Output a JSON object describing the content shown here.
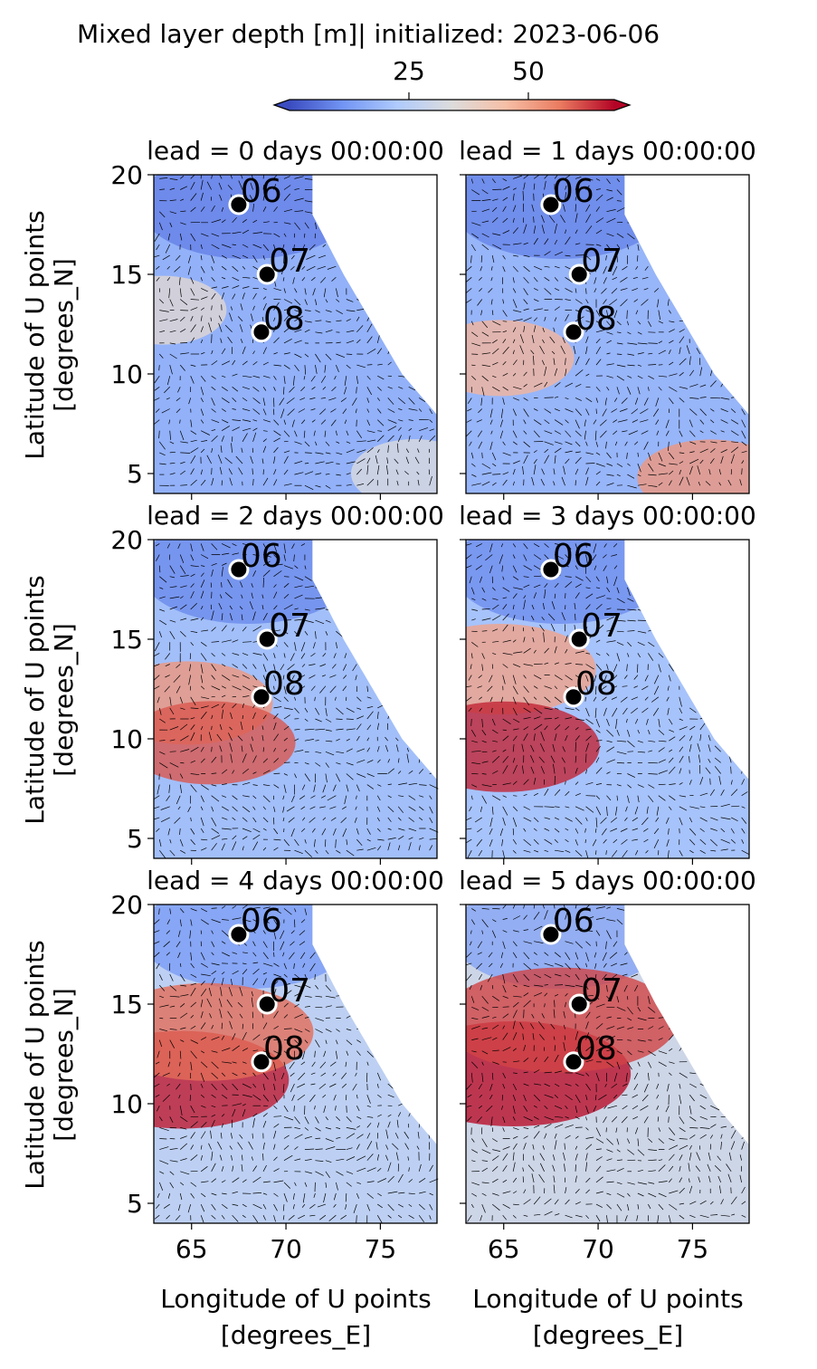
{
  "chart_data": {
    "type": "heatmap",
    "colorbar": {
      "label": "Mixed layer depth [m]| initialized: 2023-06-06",
      "ticks": [
        25,
        50
      ],
      "range": [
        0,
        68
      ],
      "colormap": "coolwarm",
      "extend": "both",
      "colors": [
        "#3b4cc0",
        "#7396f5",
        "#b0cbfc",
        "#dddcdc",
        "#f6bfa6",
        "#ea7b60",
        "#b40426"
      ]
    },
    "xlabel": "Longitude of U points\n[degrees_E]",
    "ylabel": "Latitude of U points\n[degrees_N]",
    "xlim": [
      63,
      78
    ],
    "ylim": [
      4,
      20
    ],
    "xticks": [
      65,
      70,
      75
    ],
    "yticks": [
      5,
      10,
      15,
      20
    ],
    "vector_overlay": "ocean surface current arrows (quiver)",
    "markers": [
      {
        "label": "06",
        "lon": 67.5,
        "lat": 18.5
      },
      {
        "label": "07",
        "lon": 69.0,
        "lat": 15.0
      },
      {
        "label": "08",
        "lon": 68.7,
        "lat": 12.1
      }
    ],
    "panels": [
      {
        "title": "lead = 0 days 00:00:00",
        "overall_mld": 17,
        "deep_patches": [
          {
            "lon": 63.5,
            "lat": 13.2,
            "value": 36
          },
          {
            "lon": 76.8,
            "lat": 5.0,
            "value": 33
          }
        ]
      },
      {
        "title": "lead = 1 days 00:00:00",
        "overall_mld": 18,
        "deep_patches": [
          {
            "lon": 64.8,
            "lat": 10.8,
            "value": 47
          },
          {
            "lon": 76.0,
            "lat": 4.8,
            "value": 52
          }
        ]
      },
      {
        "title": "lead = 2 days 00:00:00",
        "overall_mld": 20,
        "deep_patches": [
          {
            "lon": 64.8,
            "lat": 11.8,
            "value": 52
          },
          {
            "lon": 66.0,
            "lat": 9.8,
            "value": 60
          }
        ]
      },
      {
        "title": "lead = 3 days 00:00:00",
        "overall_mld": 21,
        "deep_patches": [
          {
            "lon": 64.8,
            "lat": 13.5,
            "value": 50
          },
          {
            "lon": 65.0,
            "lat": 9.6,
            "value": 65
          }
        ]
      },
      {
        "title": "lead = 4 days 00:00:00",
        "overall_mld": 26,
        "deep_patches": [
          {
            "lon": 64.5,
            "lat": 11.2,
            "value": 66
          },
          {
            "lon": 65.8,
            "lat": 13.6,
            "value": 58
          }
        ]
      },
      {
        "title": "lead = 5 days 00:00:00",
        "overall_mld": 30,
        "deep_patches": [
          {
            "lon": 65.5,
            "lat": 11.5,
            "value": 67
          },
          {
            "lon": 68.0,
            "lat": 14.2,
            "value": 62
          }
        ]
      }
    ]
  }
}
